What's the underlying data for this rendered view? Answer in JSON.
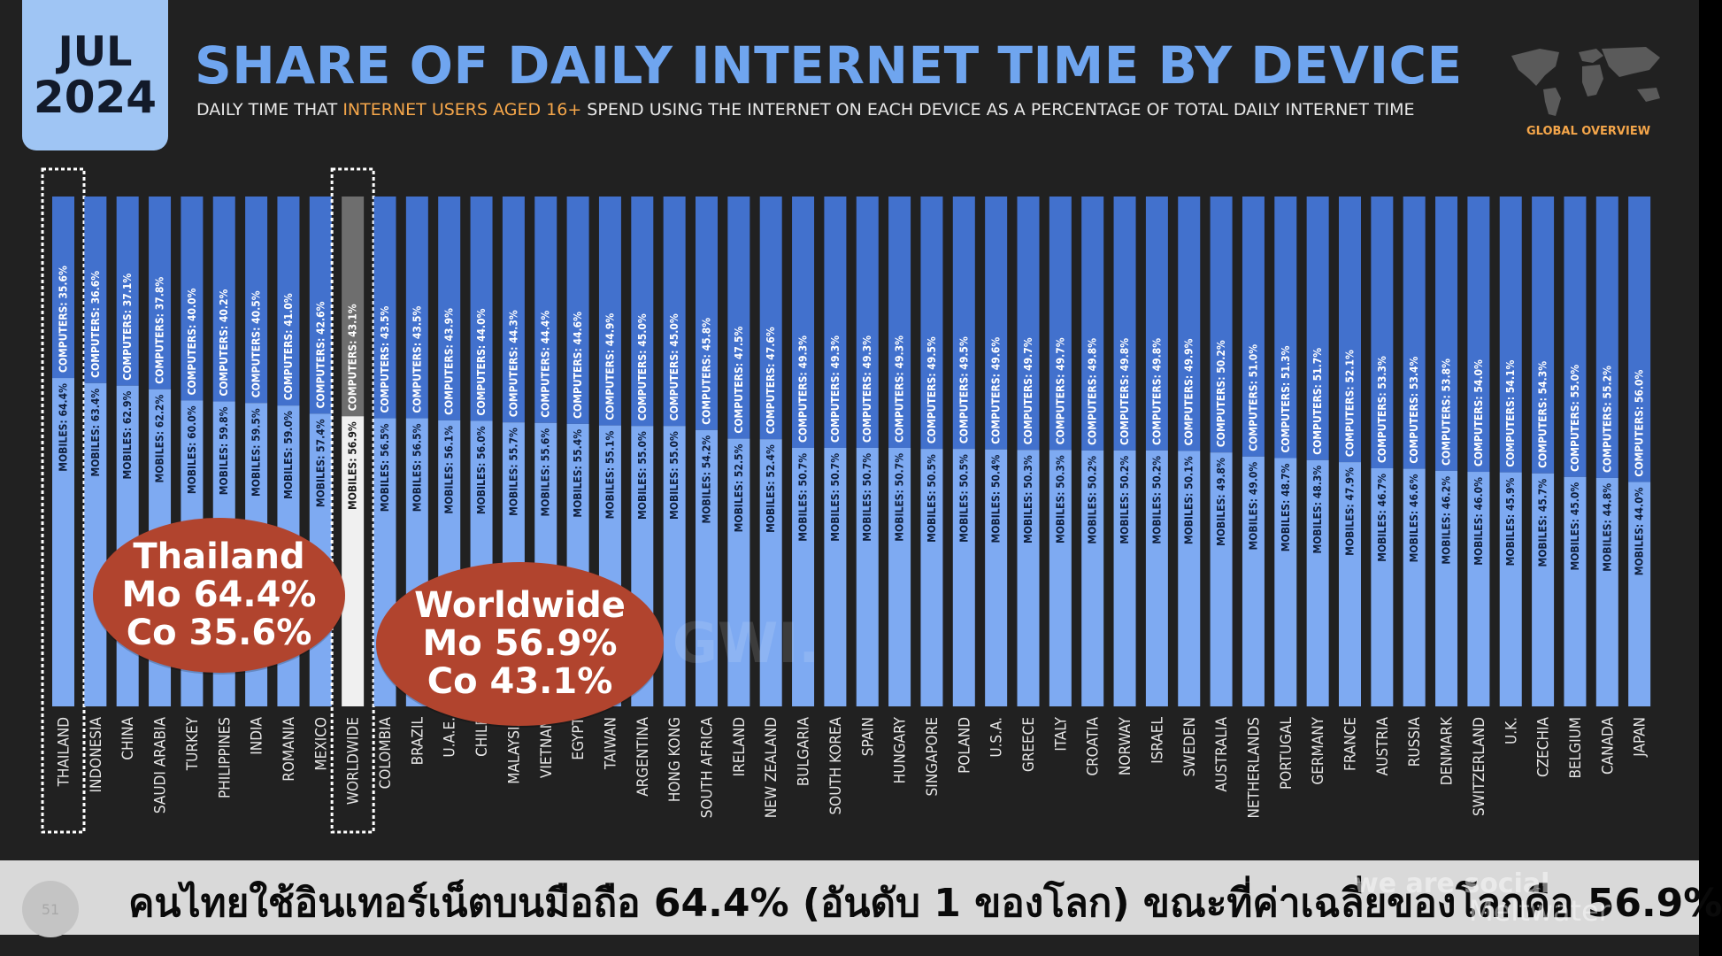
{
  "header": {
    "month": "JUL",
    "year": "2024",
    "title": "SHARE OF DAILY INTERNET TIME BY DEVICE",
    "subtitle_pre": "DAILY TIME THAT ",
    "subtitle_highlight": "INTERNET USERS AGED 16+",
    "subtitle_post": " SPEND USING THE INTERNET ON EACH DEVICE AS A PERCENTAGE OF TOTAL DAILY INTERNET TIME",
    "badge": "GLOBAL OVERVIEW"
  },
  "colors": {
    "background": "#212121",
    "mobile": "#7eaaf2",
    "computer": "#4271cd",
    "worldwide_mobile": "#f0f0f0",
    "worldwide_computer": "#6e6e6e",
    "title": "#6fa5ef",
    "accent": "#f5a64a",
    "bubble": "#b1442e"
  },
  "chart_data": {
    "type": "bar",
    "stacked": true,
    "orientation": "vertical",
    "categories": [
      "THAILAND",
      "INDONESIA",
      "CHINA",
      "SAUDI ARABIA",
      "TURKEY",
      "PHILIPPINES",
      "INDIA",
      "ROMANIA",
      "MEXICO",
      "WORLDWIDE",
      "COLOMBIA",
      "BRAZIL",
      "U.A.E.",
      "CHILE",
      "MALAYSIA",
      "VIETNAM",
      "EGYPT",
      "TAIWAN",
      "ARGENTINA",
      "HONG KONG",
      "SOUTH AFRICA",
      "IRELAND",
      "NEW ZEALAND",
      "BULGARIA",
      "SOUTH KOREA",
      "SPAIN",
      "HUNGARY",
      "SINGAPORE",
      "POLAND",
      "U.S.A.",
      "GREECE",
      "ITALY",
      "CROATIA",
      "NORWAY",
      "ISRAEL",
      "SWEDEN",
      "AUSTRALIA",
      "NETHERLANDS",
      "PORTUGAL",
      "GERMANY",
      "FRANCE",
      "AUSTRIA",
      "RUSSIA",
      "DENMARK",
      "SWITZERLAND",
      "U.K.",
      "CZECHIA",
      "BELGIUM",
      "CANADA",
      "JAPAN"
    ],
    "series": [
      {
        "name": "MOBILES",
        "values": [
          64.4,
          63.4,
          62.9,
          62.2,
          60.0,
          59.8,
          59.5,
          59.0,
          57.4,
          56.9,
          56.5,
          56.5,
          56.1,
          56.0,
          55.7,
          55.6,
          55.4,
          55.1,
          55.0,
          55.0,
          54.2,
          52.5,
          52.4,
          50.7,
          50.7,
          50.7,
          50.7,
          50.5,
          50.5,
          50.4,
          50.3,
          50.3,
          50.2,
          50.2,
          50.2,
          50.1,
          49.8,
          49.0,
          48.7,
          48.3,
          47.9,
          46.7,
          46.6,
          46.2,
          46.0,
          45.9,
          45.7,
          45.0,
          44.8,
          44.0
        ]
      },
      {
        "name": "COMPUTERS",
        "values": [
          35.6,
          36.6,
          37.1,
          37.8,
          40.0,
          40.2,
          40.5,
          41.0,
          42.6,
          43.1,
          43.5,
          43.5,
          43.9,
          44.0,
          44.3,
          44.4,
          44.6,
          44.9,
          45.0,
          45.0,
          45.8,
          47.5,
          47.6,
          49.3,
          49.3,
          49.3,
          49.3,
          49.5,
          49.5,
          49.6,
          49.7,
          49.7,
          49.8,
          49.8,
          49.8,
          49.9,
          50.2,
          51.0,
          51.3,
          51.7,
          52.1,
          53.3,
          53.4,
          53.8,
          54.0,
          54.1,
          54.3,
          55.0,
          55.2,
          56.0
        ]
      }
    ],
    "ylim": [
      0,
      100
    ],
    "highlighted": [
      "THAILAND",
      "WORLDWIDE"
    ]
  },
  "callouts": [
    {
      "title": "Thailand",
      "line1": "Mo 64.4%",
      "line2": "Co 35.6%"
    },
    {
      "title": "Worldwide",
      "line1": "Mo 56.9%",
      "line2": "Co 43.1%"
    }
  ],
  "footer": {
    "page": "51",
    "caption": "คนไทยใช้อินเทอร์เน็ตบนมือถือ 64.4% (อันดับ 1 ของโลก) ขณะที่ค่าเฉลี่ยของโลกคือ 56.9%",
    "brand_1": "we are social",
    "brand_2": "Meltwater"
  },
  "watermark": "GWI."
}
